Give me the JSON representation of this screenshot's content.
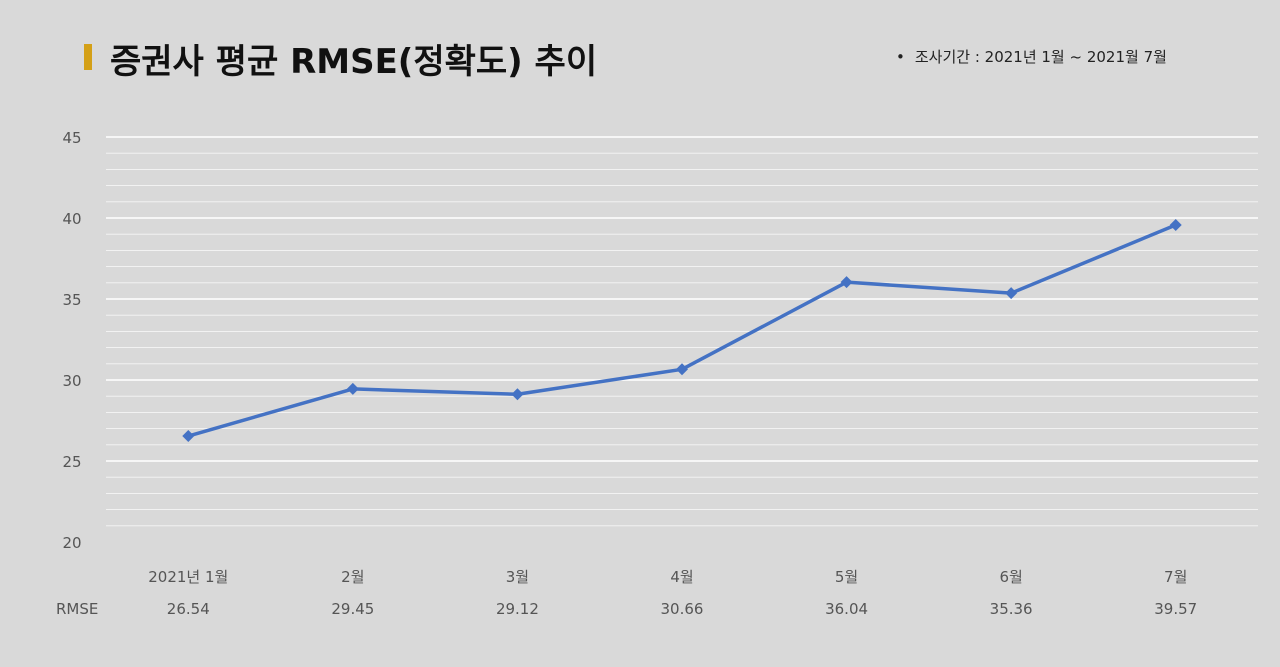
{
  "title": "증권사 평균 RMSE(정확도) 추이",
  "period": "조사기간 : 2021년 1월 ~ 2021월 7월",
  "colors": {
    "line": "#4472c4",
    "accent": "#d4a017",
    "grid": "#ffffff",
    "background": "#d9d9d9"
  },
  "chart_data": {
    "type": "line",
    "categories": [
      "2021년 1월",
      "2월",
      "3월",
      "4월",
      "5월",
      "6월",
      "7월"
    ],
    "series": [
      {
        "name": "RMSE",
        "values": [
          26.54,
          29.45,
          29.12,
          30.66,
          36.04,
          35.36,
          39.57
        ]
      }
    ],
    "value_labels": [
      "26.54",
      "29.45",
      "29.12",
      "30.66",
      "36.04",
      "35.36",
      "39.57"
    ],
    "ylim": [
      20,
      45
    ],
    "yticks": [
      20,
      25,
      30,
      35,
      40,
      45
    ],
    "grid": true,
    "marker": "diamond",
    "legend": "none",
    "table_below": true
  }
}
